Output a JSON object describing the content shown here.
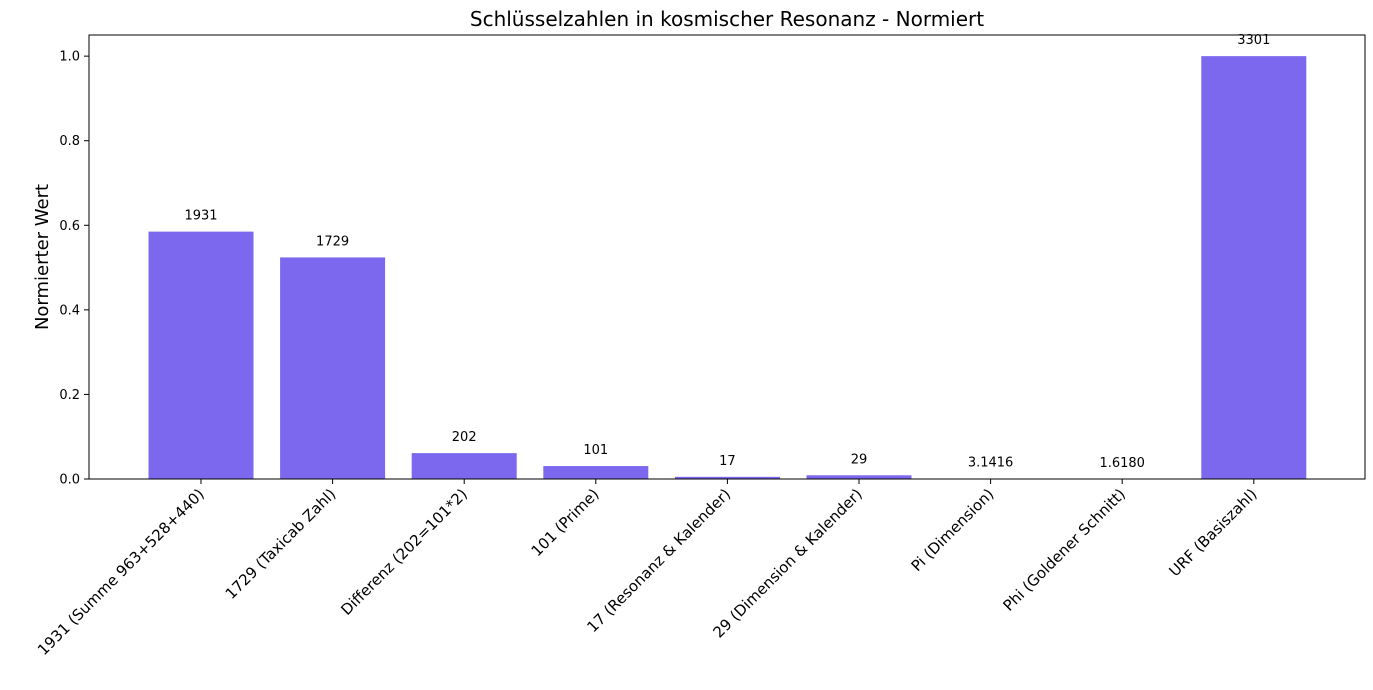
{
  "chart_data": {
    "type": "bar",
    "title": "Schlüsselzahlen in kosmischer Resonanz - Normiert",
    "xlabel": "",
    "ylabel": "Normierter Wert",
    "ylim": [
      0,
      1.05
    ],
    "yticks": [
      "0.0",
      "0.2",
      "0.4",
      "0.6",
      "0.8",
      "1.0"
    ],
    "categories": [
      "1931 (Summe 963+528+440)",
      "1729 (Taxicab Zahl)",
      "Differenz (202=101*2)",
      "101 (Prime)",
      "17 (Resonanz & Kalender)",
      "29 (Dimension & Kalender)",
      "Pi (Dimension)",
      "Phi (Goldener Schnitt)",
      "URF (Basiszahl)"
    ],
    "values": [
      0.585,
      0.524,
      0.0612,
      0.0306,
      0.00515,
      0.00879,
      0.00095,
      0.00049,
      1.0
    ],
    "data_labels": [
      "1931",
      "1729",
      "202",
      "101",
      "17",
      "29",
      "3.1416",
      "1.6180",
      "3301"
    ],
    "bar_color": "#7b68ee",
    "grid": false,
    "legend": "none"
  }
}
